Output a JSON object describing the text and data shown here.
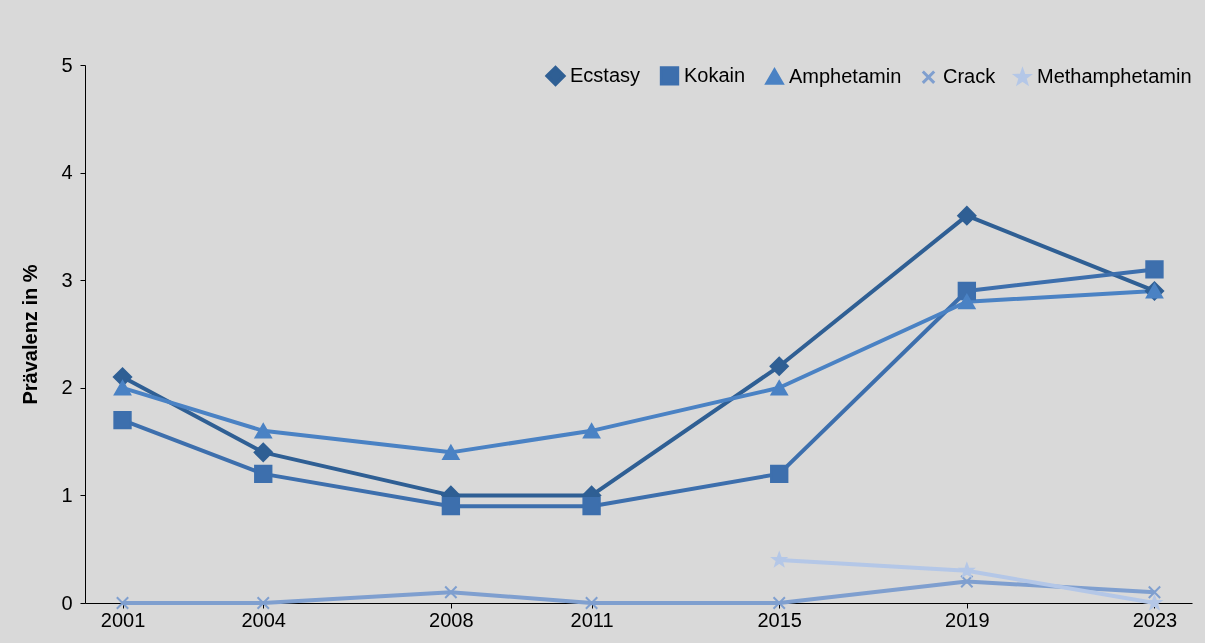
{
  "chart_data": {
    "type": "line",
    "ylabel": "Prävalenz in %",
    "x": [
      2001,
      2004,
      2008,
      2011,
      2015,
      2019,
      2023
    ],
    "xlim": [
      2000.2,
      2023.8
    ],
    "xticks": [
      2001,
      2004,
      2008,
      2011,
      2015,
      2019,
      2023
    ],
    "ylim": [
      0,
      5
    ],
    "yticks": [
      0,
      1,
      2,
      3,
      4,
      5
    ],
    "legend": "top right",
    "series": [
      {
        "name": "Ecstasy",
        "color": "#2f5f94",
        "marker": "diamond",
        "values": [
          2.1,
          1.4,
          1.0,
          1.0,
          2.2,
          3.6,
          2.9
        ]
      },
      {
        "name": "Kokain",
        "color": "#3d6fad",
        "marker": "square",
        "values": [
          1.7,
          1.2,
          0.9,
          0.9,
          1.2,
          2.9,
          3.1
        ]
      },
      {
        "name": "Amphetamin",
        "color": "#4a82c4",
        "marker": "triangle",
        "values": [
          2.0,
          1.6,
          1.4,
          1.6,
          2.0,
          2.8,
          2.9
        ]
      },
      {
        "name": "Crack",
        "color": "#7f9fcf",
        "marker": "cross",
        "values": [
          0,
          0,
          0.1,
          0,
          0,
          0.2,
          0.1
        ]
      },
      {
        "name": "Methamphetamin",
        "color": "#b4c7e7",
        "marker": "star",
        "values": [
          null,
          null,
          null,
          null,
          0.4,
          0.3,
          0.0
        ]
      }
    ]
  }
}
